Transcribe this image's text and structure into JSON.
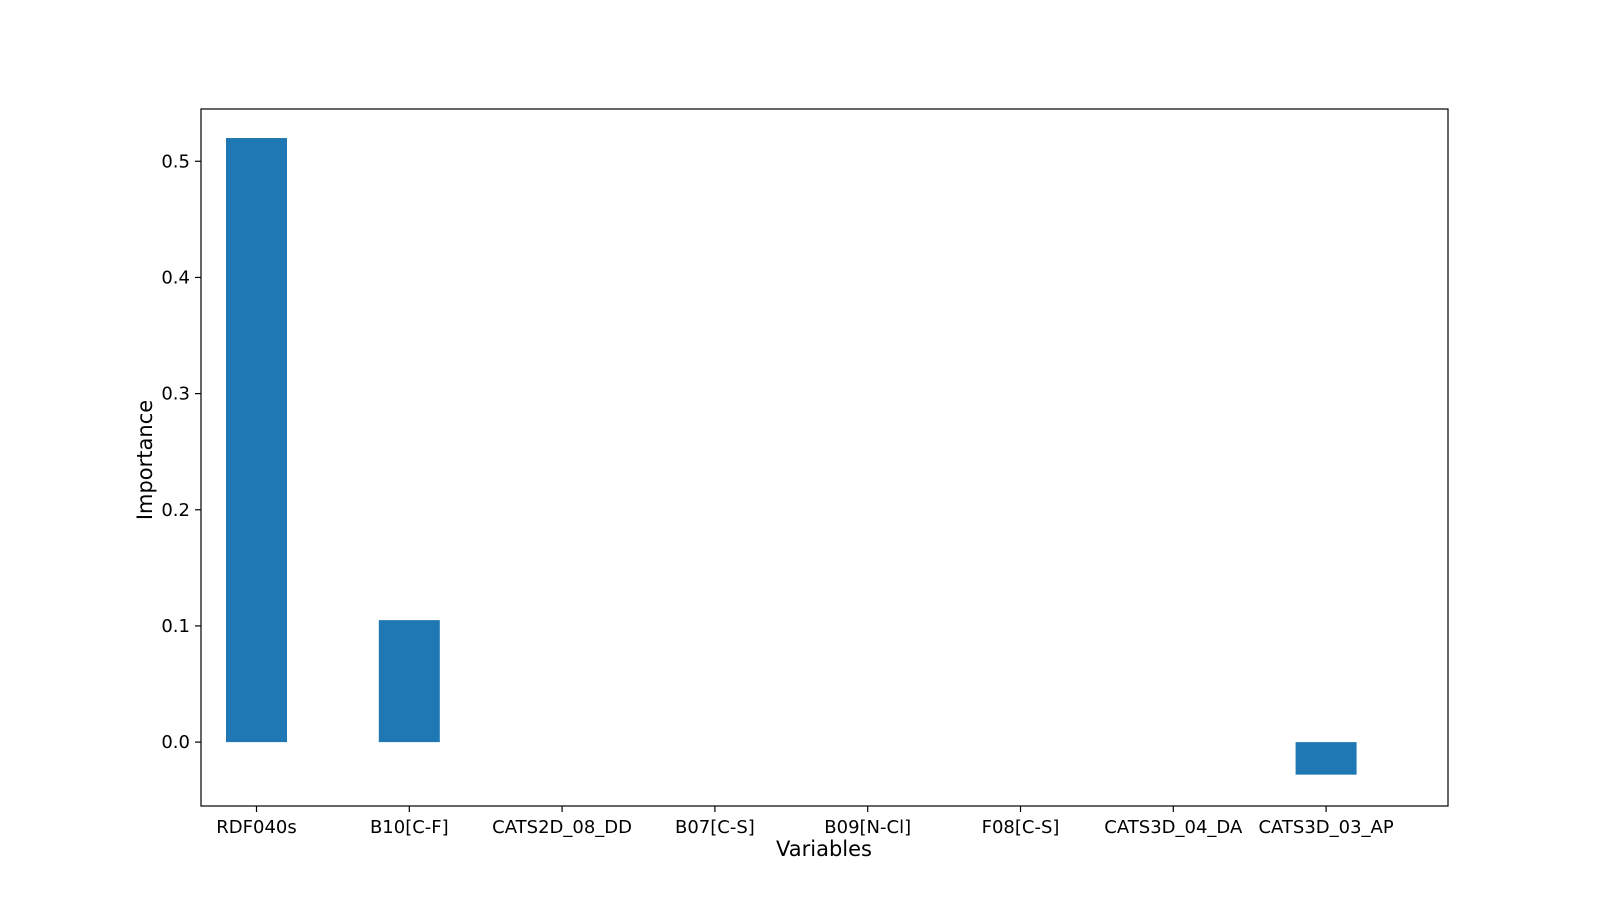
{
  "chart_data": {
    "type": "bar",
    "title": "",
    "xlabel": "Variables",
    "ylabel": "Importance",
    "categories": [
      "RDF040s",
      "B10[C-F]",
      "CATS2D_08_DD",
      "B07[C-S]",
      "B09[N-Cl]",
      "F08[C-S]",
      "CATS3D_04_DA",
      "CATS3D_03_AP"
    ],
    "values": [
      0.52,
      0.105,
      0.0,
      0.0,
      0.0,
      0.0,
      0.0,
      -0.028
    ],
    "ylim": [
      -0.055,
      0.545
    ],
    "yticks": [
      0.0,
      0.1,
      0.2,
      0.3,
      0.4,
      0.5
    ],
    "ytick_labels": [
      "0.0",
      "0.1",
      "0.2",
      "0.3",
      "0.4",
      "0.5"
    ],
    "grid": false,
    "bar_color": "#1f77b4"
  }
}
